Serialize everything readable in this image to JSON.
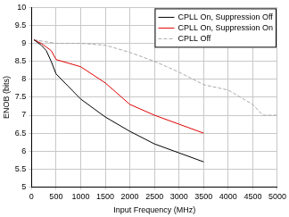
{
  "chart_data": {
    "type": "line",
    "x_label": "Input Frequency (MHz)",
    "y_label": "ENOB (bits)",
    "xlim": [
      0,
      5000
    ],
    "xticks": [
      0,
      500,
      1000,
      1500,
      2000,
      2500,
      3000,
      3500,
      4000,
      4500,
      5000
    ],
    "ylim": [
      5,
      10
    ],
    "yticks": [
      5,
      5.5,
      6,
      6.5,
      7,
      7.5,
      8,
      8.5,
      9,
      9.5,
      10
    ],
    "grid": true,
    "legend": "upper right",
    "series": [
      {
        "name": "CPLL On, Suppression Off",
        "color": "#000000",
        "line_style": "solid",
        "x": [
          50,
          100,
          200,
          300,
          400,
          500,
          750,
          1000,
          1500,
          2000,
          2500,
          3000,
          3500
        ],
        "values": [
          9.1,
          9.05,
          8.95,
          8.8,
          8.5,
          8.15,
          7.8,
          7.45,
          6.95,
          6.55,
          6.2,
          5.95,
          5.7
        ]
      },
      {
        "name": "CPLL On, Suppression On",
        "color": "#e00000",
        "line_style": "solid",
        "x": [
          50,
          200,
          300,
          400,
          500,
          1000,
          1500,
          2000,
          2500,
          3000,
          3500
        ],
        "values": [
          9.1,
          9.0,
          8.9,
          8.8,
          8.55,
          8.35,
          7.9,
          7.3,
          7.0,
          6.75,
          6.5
        ]
      },
      {
        "name": "CPLL Off",
        "color": "#aaaaaa",
        "line_style": "dashed",
        "x": [
          50,
          500,
          1000,
          1500,
          2000,
          2500,
          3000,
          3500,
          4000,
          4500,
          4700,
          5000
        ],
        "values": [
          9.1,
          9.0,
          9.0,
          8.95,
          8.75,
          8.5,
          8.2,
          7.85,
          7.7,
          7.3,
          7.0,
          7.0
        ]
      }
    ]
  }
}
